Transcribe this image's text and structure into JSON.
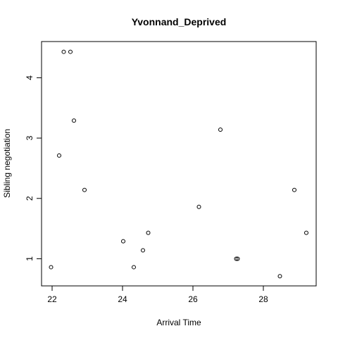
{
  "chart_data": {
    "type": "scatter",
    "title": "Yvonnand_Deprived",
    "xlabel": "Arrival Time",
    "ylabel": "Sibling negotiation",
    "xlim": [
      21.7,
      29.5
    ],
    "ylim": [
      0.55,
      4.6
    ],
    "xticks": [
      22,
      24,
      26,
      28
    ],
    "yticks": [
      1,
      2,
      3,
      4
    ],
    "grid": false,
    "legend": "none",
    "marker": "open-circle",
    "points": [
      {
        "x": 21.97,
        "y": 0.86
      },
      {
        "x": 22.2,
        "y": 2.71
      },
      {
        "x": 22.33,
        "y": 4.43
      },
      {
        "x": 22.52,
        "y": 4.43
      },
      {
        "x": 22.62,
        "y": 3.29
      },
      {
        "x": 22.92,
        "y": 2.14
      },
      {
        "x": 24.02,
        "y": 1.29
      },
      {
        "x": 24.32,
        "y": 0.86
      },
      {
        "x": 24.58,
        "y": 1.14
      },
      {
        "x": 24.73,
        "y": 1.43
      },
      {
        "x": 26.17,
        "y": 1.86
      },
      {
        "x": 26.78,
        "y": 3.14
      },
      {
        "x": 27.23,
        "y": 1.0
      },
      {
        "x": 27.27,
        "y": 1.0
      },
      {
        "x": 28.47,
        "y": 0.71
      },
      {
        "x": 28.88,
        "y": 2.14
      },
      {
        "x": 29.22,
        "y": 1.43
      }
    ]
  }
}
